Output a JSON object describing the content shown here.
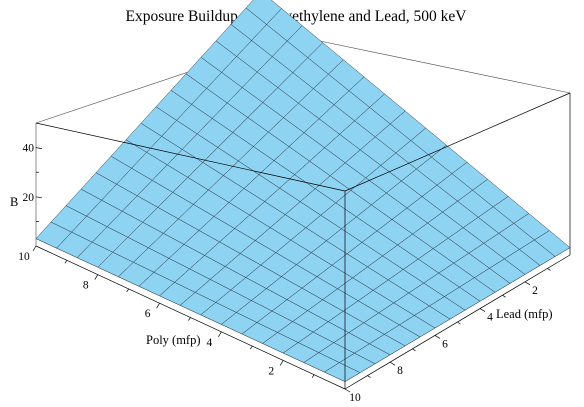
{
  "chart_data": {
    "type": "surface3d",
    "title": "Exposure Buildup for Polyethylene and Lead, 500 keV",
    "zlabel": "B",
    "poly_axis": {
      "label": "Poly (mfp)",
      "ticks": [
        "2",
        "4",
        "6",
        "8",
        "10"
      ],
      "range": [
        0,
        10
      ]
    },
    "lead_axis": {
      "label": "Lead (mfp)",
      "ticks": [
        "2",
        "4",
        "6",
        "8",
        "10"
      ],
      "range": [
        0,
        10
      ]
    },
    "z_axis": {
      "ticks": [
        "20",
        "40"
      ],
      "range": [
        0,
        50
      ]
    },
    "grid_size": 15,
    "surfaces": [
      {
        "name": "",
        "color": "#8fd3f2",
        "edge_color": "#2b3f52",
        "corners": {
          "poly0_lead0": 3.0,
          "poly10_lead0": 49.0,
          "poly0_lead10": 3.0,
          "poly10_lead10": 3.0
        }
      },
      {
        "name": "",
        "color": "#7d0a0a",
        "edge_color": "#1a0000",
        "corners": {
          "poly0_lead0": 3.0,
          "poly10_lead0": 3.0,
          "poly0_lead10": 3.0,
          "poly10_lead10": 3.0
        }
      }
    ]
  }
}
